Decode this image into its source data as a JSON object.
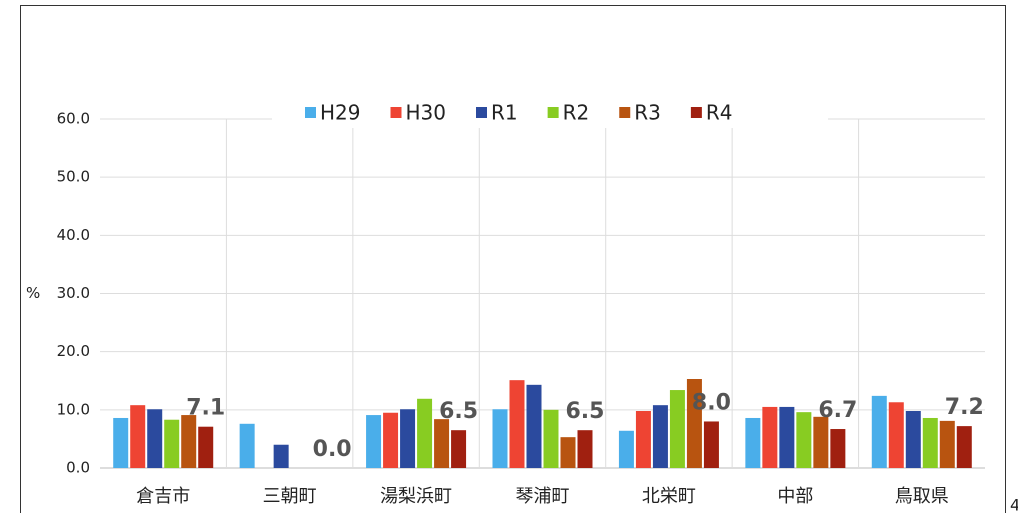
{
  "chart_data": {
    "type": "bar",
    "y_axis_label": "%",
    "categories": [
      "倉吉市",
      "三朝町",
      "湯梨浜町",
      "琴浦町",
      "北栄町",
      "中部",
      "鳥取県"
    ],
    "series": [
      {
        "name": "H29",
        "color": "#4aaeea",
        "values": [
          8.6,
          7.6,
          9.1,
          10.1,
          6.4,
          8.6,
          12.4
        ]
      },
      {
        "name": "H30",
        "color": "#ee4433",
        "values": [
          10.8,
          0,
          9.5,
          15.1,
          9.8,
          10.5,
          11.3
        ]
      },
      {
        "name": "R1",
        "color": "#2b4a9e",
        "values": [
          10.1,
          4.0,
          10.1,
          14.3,
          10.8,
          10.5,
          9.8
        ]
      },
      {
        "name": "R2",
        "color": "#88cc22",
        "values": [
          8.3,
          0,
          11.9,
          10.0,
          13.4,
          9.6,
          8.6
        ]
      },
      {
        "name": "R3",
        "color": "#b85410",
        "values": [
          9.1,
          0,
          8.4,
          5.3,
          15.3,
          8.8,
          8.1
        ]
      },
      {
        "name": "R4",
        "color": "#a02010",
        "values": [
          7.1,
          0,
          6.5,
          6.5,
          8.0,
          6.7,
          7.2
        ],
        "value_labels": [
          "7.1",
          "0.0",
          "6.5",
          "6.5",
          "8.0",
          "6.7",
          "7.2"
        ]
      }
    ],
    "ylim": [
      0,
      60
    ],
    "yticks": [
      {
        "value": 0,
        "label": "0.0"
      },
      {
        "value": 10,
        "label": "10.0"
      },
      {
        "value": 20,
        "label": "20.0"
      },
      {
        "value": 30,
        "label": "30.0"
      },
      {
        "value": 40,
        "label": "40.0"
      },
      {
        "value": 50,
        "label": "50.0"
      },
      {
        "value": 60,
        "label": "60.0"
      }
    ],
    "grid": true,
    "legend": "top"
  },
  "page_marker": "4"
}
